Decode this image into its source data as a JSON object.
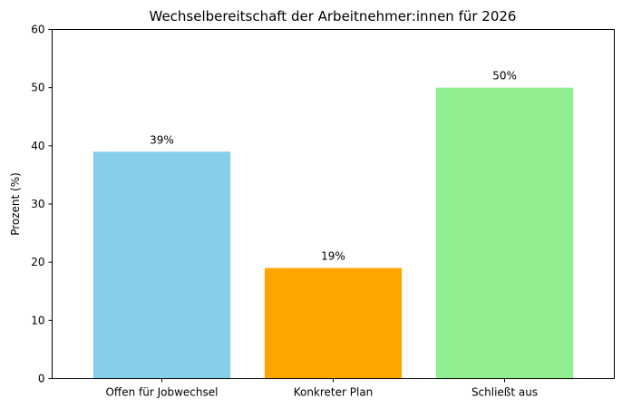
{
  "chart_data": {
    "type": "bar",
    "title": "Wechselbereitschaft der Arbeitnehmer:innen für 2026",
    "xlabel": "",
    "ylabel": "Prozent (%)",
    "categories": [
      "Offen für Jobwechsel",
      "Konkreter Plan",
      "Schließt aus"
    ],
    "values": [
      39,
      19,
      50
    ],
    "data_labels": [
      "39%",
      "19%",
      "50%"
    ],
    "colors": [
      "#87ceeb",
      "#ffa500",
      "#90ee90"
    ],
    "ylim": [
      0,
      60
    ],
    "yticks": [
      0,
      10,
      20,
      30,
      40,
      50,
      60
    ],
    "grid": false,
    "legend": "none"
  }
}
